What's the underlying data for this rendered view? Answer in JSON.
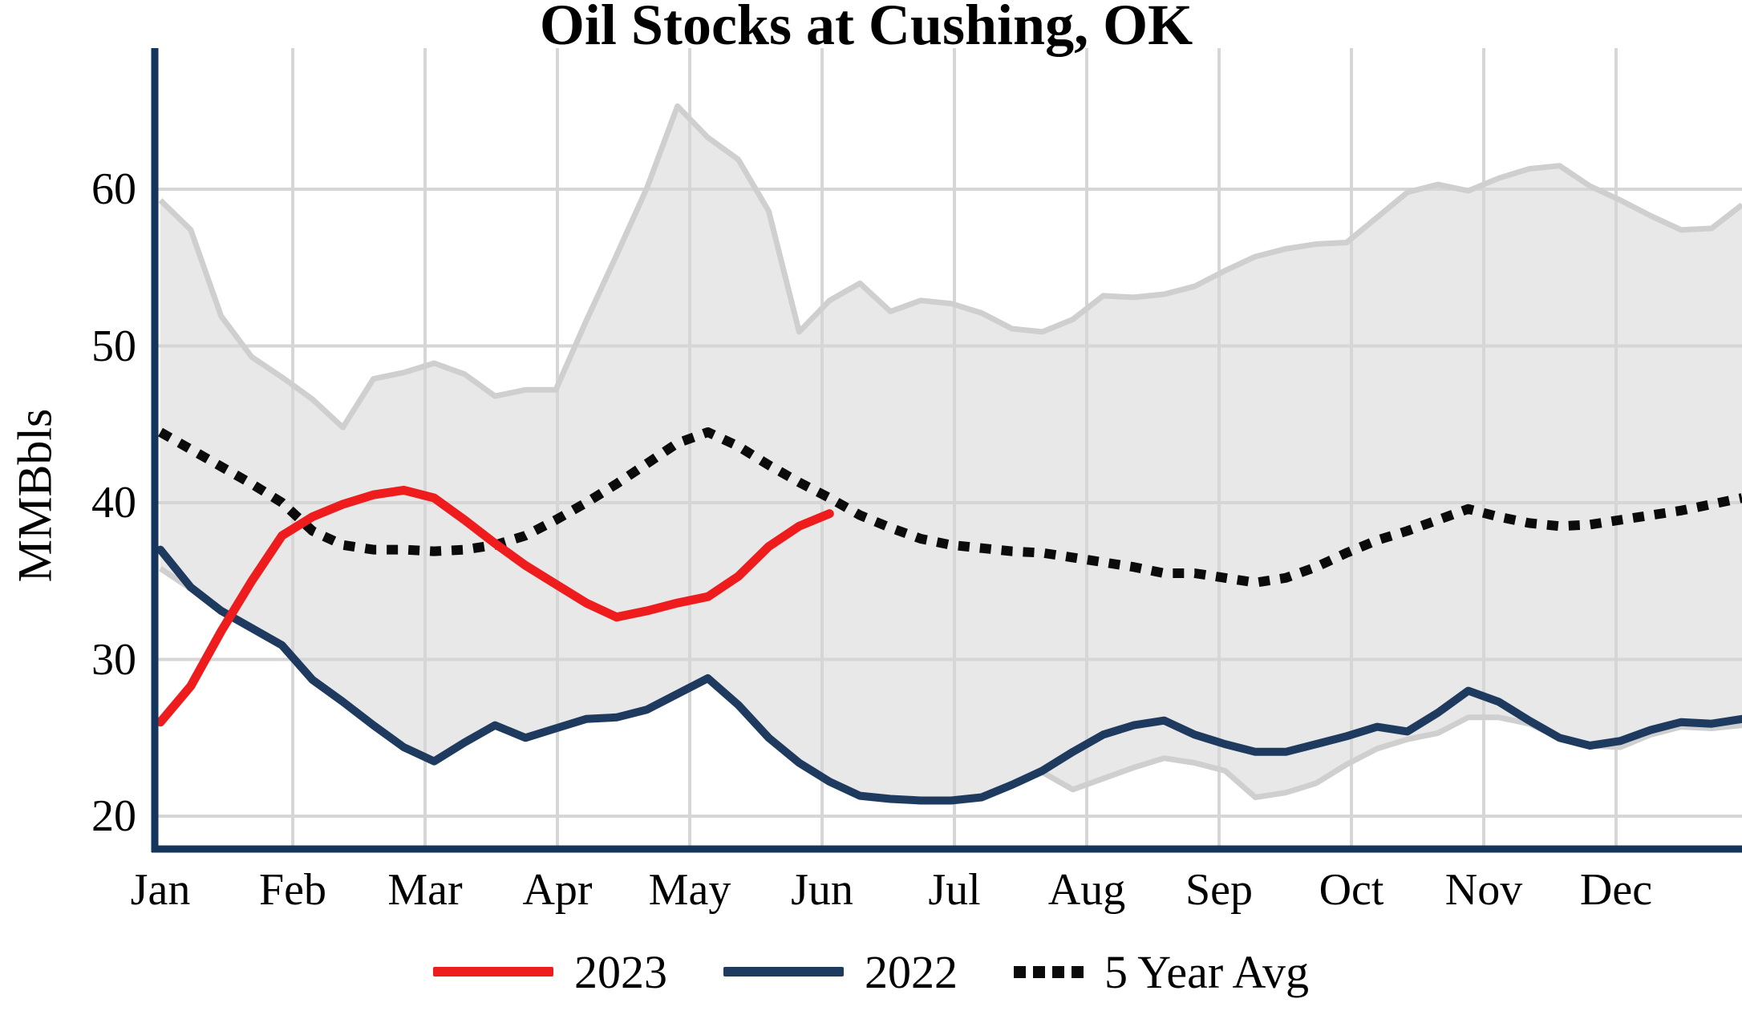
{
  "title": "Oil Stocks at Cushing, OK",
  "y_axis": {
    "label": "MMBbls",
    "ticks": [
      {
        "label": "20",
        "value": 20
      },
      {
        "label": "30",
        "value": 30
      },
      {
        "label": "40",
        "value": 40
      },
      {
        "label": "50",
        "value": 50
      },
      {
        "label": "60",
        "value": 60
      }
    ]
  },
  "x_axis": {
    "months": [
      "Jan",
      "Feb",
      "Mar",
      "Apr",
      "May",
      "Jun",
      "Jul",
      "Aug",
      "Sep",
      "Oct",
      "Nov",
      "Dec"
    ]
  },
  "legend": [
    {
      "label": "2023",
      "style": "solid",
      "color": "#ee1c1c"
    },
    {
      "label": "2022",
      "style": "solid",
      "color": "#1e3a5f"
    },
    {
      "label": "5 Year Avg",
      "style": "dotted",
      "color": "#0b0b0b"
    }
  ],
  "colors": {
    "red_2023": "#ee1c1c",
    "navy_2022": "#1e3a5f",
    "avg_dotted": "#0b0b0b",
    "band_fill": "#e8e8e8",
    "band_outline": "#cfcfcf",
    "gridline": "#d6d6d6",
    "axis": "#16355c",
    "background": "#ffffff"
  },
  "chart_data": {
    "type": "line",
    "title": "Oil Stocks at Cushing, OK",
    "ylabel": "MMBbls",
    "ylim": [
      18.5,
      67.5
    ],
    "yticks": [
      20,
      30,
      40,
      50,
      60
    ],
    "x_unit": "weekly points, Jan through Dec (index 0-52)",
    "grid": "light gray, horizontal at each ytick and vertical at each month",
    "legend_position": "bottom center",
    "band": {
      "name": "5 Year Range",
      "fill": "#e8e8e8",
      "upper": [
        59.3,
        57.4,
        51.9,
        49.3,
        48.0,
        46.6,
        44.8,
        47.9,
        48.3,
        48.9,
        48.2,
        46.8,
        47.2,
        47.2,
        51.6,
        55.8,
        60.1,
        65.3,
        63.3,
        61.9,
        58.6,
        50.9,
        52.9,
        54.0,
        52.2,
        52.9,
        52.7,
        52.1,
        51.1,
        50.9,
        51.7,
        53.2,
        53.1,
        53.3,
        53.8,
        54.8,
        55.7,
        56.2,
        56.5,
        56.6,
        58.2,
        59.8,
        60.3,
        59.9,
        60.7,
        61.3,
        61.5,
        60.2,
        59.3,
        58.3,
        57.4,
        57.5,
        59.0
      ],
      "lower": [
        35.8,
        34.5,
        33.1,
        32.0,
        30.9,
        28.7,
        27.3,
        25.8,
        24.4,
        23.5,
        24.7,
        25.8,
        25.0,
        25.6,
        26.2,
        26.3,
        26.8,
        27.8,
        28.8,
        27.1,
        25.0,
        23.4,
        22.2,
        21.3,
        21.1,
        21.0,
        21.0,
        21.2,
        22.0,
        22.8,
        21.7,
        22.4,
        23.1,
        23.7,
        23.4,
        22.9,
        21.2,
        21.5,
        22.1,
        23.3,
        24.3,
        24.9,
        25.3,
        26.3,
        26.3,
        25.9,
        25.0,
        24.5,
        24.4,
        25.2,
        25.7,
        25.6,
        25.8
      ]
    },
    "series": [
      {
        "name": "2023",
        "color": "#ee1c1c",
        "style": "solid",
        "values": [
          26.0,
          28.3,
          31.8,
          35.0,
          37.9,
          39.1,
          39.9,
          40.5,
          40.8,
          40.3,
          38.9,
          37.4,
          36.0,
          34.8,
          33.6,
          32.7,
          33.1,
          33.6,
          34.0,
          35.3,
          37.2,
          38.5,
          39.3
        ]
      },
      {
        "name": "2022",
        "color": "#1e3a5f",
        "style": "solid",
        "values": [
          37.0,
          34.6,
          33.1,
          32.0,
          30.9,
          28.7,
          27.3,
          25.8,
          24.4,
          23.5,
          24.7,
          25.8,
          25.0,
          25.6,
          26.2,
          26.3,
          26.8,
          27.8,
          28.8,
          27.1,
          25.0,
          23.4,
          22.2,
          21.3,
          21.1,
          21.0,
          21.0,
          21.2,
          22.0,
          22.9,
          24.1,
          25.2,
          25.8,
          26.1,
          25.2,
          24.6,
          24.1,
          24.1,
          24.6,
          25.1,
          25.7,
          25.4,
          26.6,
          28.0,
          27.3,
          26.1,
          25.0,
          24.5,
          24.8,
          25.5,
          26.0,
          25.9,
          26.2
        ]
      },
      {
        "name": "5 Year Avg",
        "color": "#0b0b0b",
        "style": "dotted",
        "values": [
          44.5,
          43.4,
          42.3,
          41.2,
          40.0,
          38.2,
          37.3,
          37.0,
          37.0,
          36.9,
          37.0,
          37.3,
          37.9,
          38.9,
          40.0,
          41.2,
          42.5,
          43.8,
          44.5,
          43.6,
          42.4,
          41.3,
          40.3,
          39.2,
          38.4,
          37.7,
          37.3,
          37.1,
          36.9,
          36.8,
          36.5,
          36.2,
          35.9,
          35.5,
          35.5,
          35.2,
          34.9,
          35.2,
          35.9,
          36.8,
          37.6,
          38.2,
          38.9,
          39.6,
          39.1,
          38.7,
          38.5,
          38.6,
          38.9,
          39.2,
          39.5,
          39.9,
          40.3
        ]
      }
    ]
  }
}
